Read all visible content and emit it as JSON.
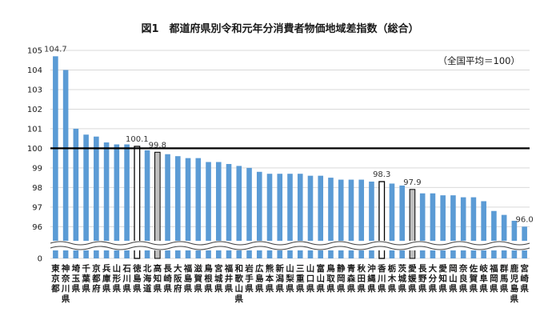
{
  "chart_data": {
    "type": "bar",
    "title": "図1　都道府県別令和元年分消費者物価地域差指数（総合）",
    "note": "（全国平均＝100）",
    "ylim": [
      95.4,
      105
    ],
    "yticks": [
      96,
      97,
      98,
      99,
      100,
      101,
      102,
      103,
      104,
      105
    ],
    "ytick_labels": [
      "0",
      "96",
      "97",
      "98",
      "99",
      "100",
      "101",
      "102",
      "103",
      "104",
      "105"
    ],
    "reference_value": 100,
    "grid": true,
    "categories": [
      "東京都",
      "神奈川県",
      "埼玉県",
      "千葉県",
      "京都府",
      "兵庫県",
      "山形県",
      "石川県",
      "徳島県",
      "北海道",
      "高知県",
      "長崎県",
      "大阪府",
      "福島県",
      "滋賀県",
      "鳥根県",
      "宮城県",
      "福井県",
      "和歌山県",
      "岩手県",
      "広島県",
      "熊本県",
      "新潟県",
      "山梨県",
      "三重県",
      "山口県",
      "富山県",
      "鳥取県",
      "静岡県",
      "青森県",
      "秋田県",
      "沖縄県",
      "香川県",
      "栃木県",
      "茨城県",
      "愛媛県",
      "長野県",
      "大分県",
      "愛知県",
      "岡山県",
      "奈良県",
      "佐賀県",
      "岐阜県",
      "福岡県",
      "群馬県",
      "鹿児島県",
      "宮崎県"
    ],
    "values": [
      104.7,
      104.0,
      101.0,
      100.7,
      100.6,
      100.3,
      100.2,
      100.2,
      100.1,
      99.9,
      99.8,
      99.7,
      99.6,
      99.5,
      99.5,
      99.3,
      99.3,
      99.2,
      99.1,
      99.0,
      98.8,
      98.7,
      98.7,
      98.7,
      98.7,
      98.6,
      98.6,
      98.5,
      98.4,
      98.4,
      98.4,
      98.3,
      98.3,
      98.2,
      98.1,
      97.9,
      97.7,
      97.7,
      97.6,
      97.6,
      97.5,
      97.5,
      97.3,
      96.8,
      96.6,
      96.3,
      96.0
    ],
    "data_labels": [
      {
        "index": 0,
        "text": "104.7"
      },
      {
        "index": 8,
        "text": "100.1"
      },
      {
        "index": 10,
        "text": "99.8"
      },
      {
        "index": 32,
        "text": "98.3"
      },
      {
        "index": 35,
        "text": "97.9"
      },
      {
        "index": 46,
        "text": "96.0"
      }
    ],
    "highlight_gray": [
      10,
      35
    ],
    "highlight_outline": [
      8,
      32
    ],
    "colors": {
      "bar": "#5b9bd5",
      "highlight_gray": "#bfbfbf",
      "outline": "#000000",
      "grid": "#d9d9d9",
      "reference_line": "#000000"
    }
  }
}
